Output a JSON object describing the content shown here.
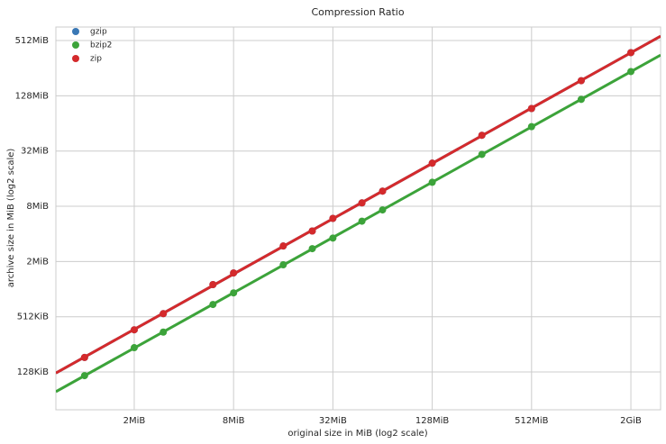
{
  "chart_data": {
    "type": "scatter",
    "title": "Compression Ratio",
    "x_label": "original size in MiB (log2 scale)",
    "y_label": "archive size in MiB (log2 scale)",
    "xscale": "log2",
    "yscale": "log2",
    "grid": true,
    "legend": "upper left",
    "regression": true,
    "x": [
      1,
      2,
      3,
      6,
      8,
      16,
      24,
      32,
      48,
      64,
      128,
      256,
      512,
      1024,
      2048
    ],
    "series": [
      {
        "name": "gzip",
        "color": "#3a78b5",
        "values": [
          0.18,
          0.36,
          0.54,
          1.12,
          1.5,
          2.95,
          4.3,
          5.9,
          8.7,
          11.7,
          23.6,
          47.5,
          93,
          187,
          378
        ]
      },
      {
        "name": "bzip2",
        "color": "#3ca33a",
        "values": [
          0.114,
          0.23,
          0.34,
          0.68,
          0.91,
          1.84,
          2.76,
          3.6,
          5.5,
          7.3,
          14.6,
          29.4,
          59,
          117,
          235
        ]
      },
      {
        "name": "zip",
        "color": "#d42a2c",
        "values": [
          0.18,
          0.36,
          0.54,
          1.12,
          1.5,
          2.95,
          4.3,
          5.9,
          8.7,
          11.7,
          23.6,
          47.5,
          93,
          187,
          378
        ]
      }
    ],
    "xlim": [
      0.67,
      3100
    ],
    "ylim": [
      0.0484,
      719
    ],
    "xticks": [
      {
        "value": 2,
        "label": "2MiB"
      },
      {
        "value": 8,
        "label": "8MiB"
      },
      {
        "value": 32,
        "label": "32MiB"
      },
      {
        "value": 128,
        "label": "128MiB"
      },
      {
        "value": 512,
        "label": "512MiB"
      },
      {
        "value": 2048,
        "label": "2GiB"
      }
    ],
    "yticks": [
      {
        "value": 0.125,
        "label": "128KiB"
      },
      {
        "value": 0.5,
        "label": "512KiB"
      },
      {
        "value": 2,
        "label": "2MiB"
      },
      {
        "value": 8,
        "label": "8MiB"
      },
      {
        "value": 32,
        "label": "32MiB"
      },
      {
        "value": 128,
        "label": "128MiB"
      },
      {
        "value": 512,
        "label": "512MiB"
      }
    ]
  }
}
